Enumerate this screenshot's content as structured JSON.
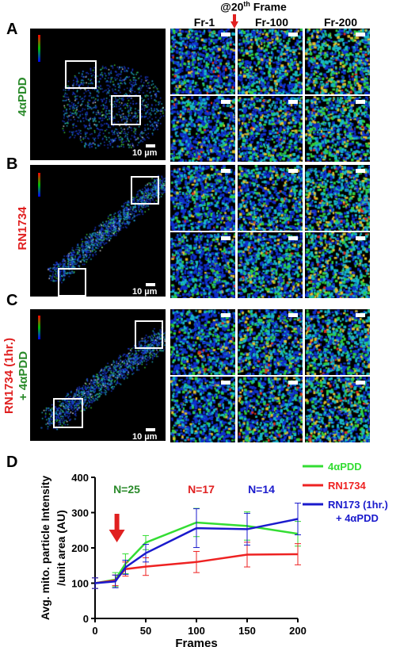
{
  "figure": {
    "panels": [
      {
        "letter": "A",
        "label_parts": [
          {
            "text": "4αPDD",
            "color": "#2a8a2a"
          }
        ]
      },
      {
        "letter": "B",
        "label_parts": [
          {
            "text": "RN1734",
            "color": "#e02020"
          }
        ]
      },
      {
        "letter": "C",
        "label_parts": [
          {
            "text": "RN1734 (1hr.)",
            "color": "#e02020"
          },
          {
            "text": "+ 4αPDD",
            "color": "#2a8a2a"
          }
        ]
      }
    ],
    "header": {
      "frame_note_prefix": "@20",
      "frame_note_sup": "th",
      "frame_note_suffix": " Frame",
      "columns": [
        "Fr-1",
        "Fr-100",
        "Fr-200"
      ]
    },
    "scale_label": "10 µm",
    "panel_d_letter": "D"
  },
  "chart_data": {
    "type": "line",
    "x": [
      0,
      20,
      30,
      50,
      100,
      150,
      200
    ],
    "xlabel": "Frames",
    "ylabel_lines": [
      "Avg. mito. particle Intensity",
      "/unit area (AU)"
    ],
    "xlim": [
      0,
      200
    ],
    "ylim": [
      0,
      400
    ],
    "xticks": [
      0,
      50,
      100,
      150,
      200
    ],
    "yticks": [
      0,
      100,
      200,
      300,
      400
    ],
    "series": [
      {
        "name": "4αPDD",
        "color": "#33dd33",
        "values": [
          100,
          110,
          155,
          215,
          272,
          262,
          240
        ],
        "err": [
          15,
          20,
          28,
          20,
          40,
          40,
          35
        ]
      },
      {
        "name": "RN1734",
        "color": "#ee2222",
        "values": [
          100,
          108,
          140,
          147,
          160,
          181,
          182
        ],
        "err": [
          15,
          15,
          20,
          25,
          30,
          35,
          30
        ]
      },
      {
        "name": "RN173 (1hr.)",
        "name2": "+ 4αPDD",
        "color": "#1a1acc",
        "values": [
          100,
          105,
          145,
          185,
          256,
          253,
          282
        ],
        "err": [
          15,
          18,
          20,
          25,
          55,
          45,
          45
        ]
      }
    ],
    "annotations": [
      {
        "text": "N=25",
        "color": "#2a8a2a"
      },
      {
        "text": "N=17",
        "color": "#e02020"
      },
      {
        "text": "N=14",
        "color": "#1a1acc"
      }
    ],
    "arrow_x": 20,
    "legend_position": "top-right"
  }
}
